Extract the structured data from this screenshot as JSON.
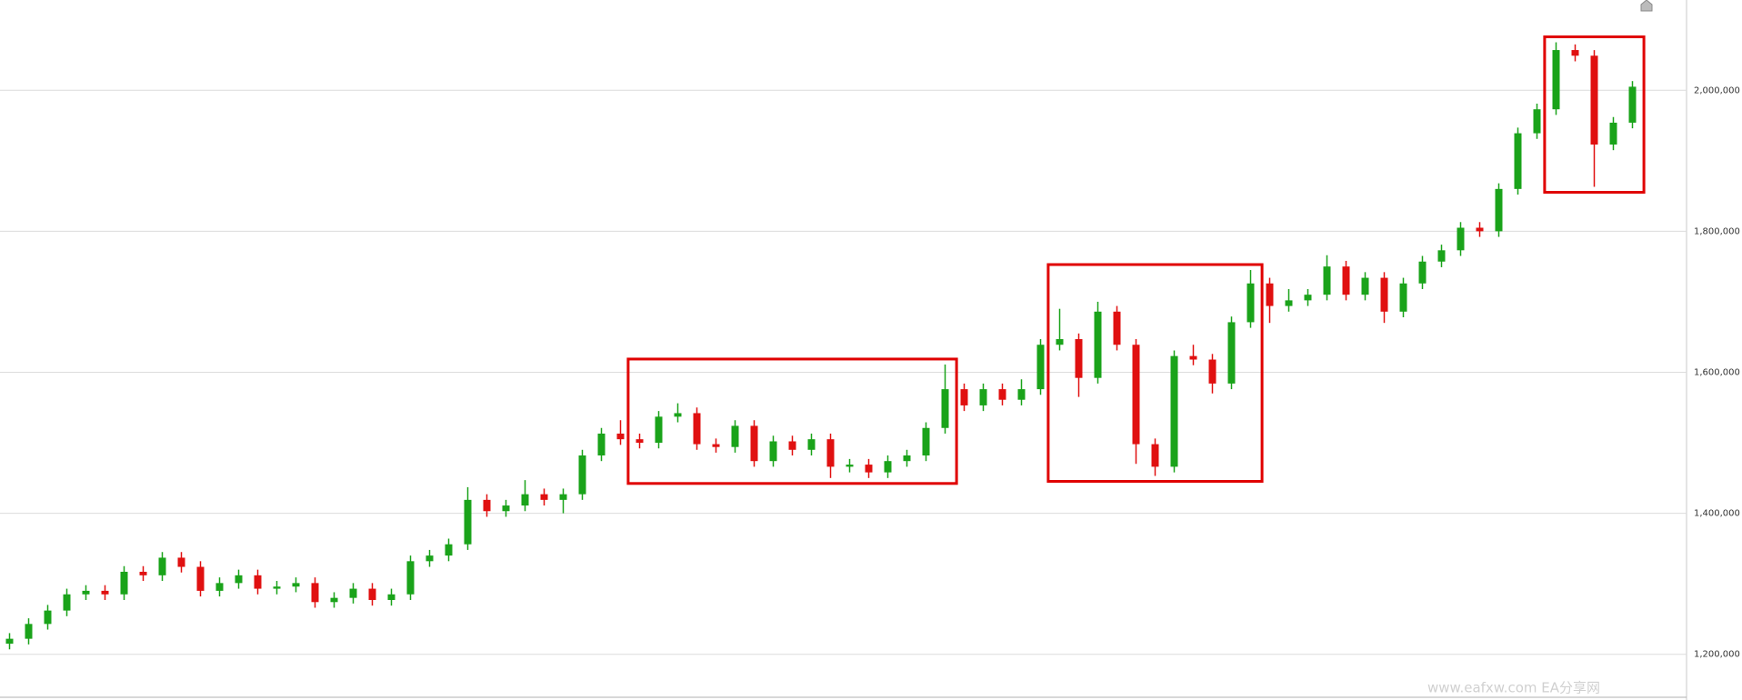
{
  "chart_data": {
    "type": "candlestick",
    "up_color": "#1aa31a",
    "down_color": "#e01010",
    "grid": true,
    "ylim": [
      1139000,
      2128000
    ],
    "yticks": [
      {
        "value": 1200000,
        "label": "1,200,000"
      },
      {
        "value": 1400000,
        "label": "1,400,000"
      },
      {
        "value": 1600000,
        "label": "1,600,000"
      },
      {
        "value": 1800000,
        "label": "1,800,000"
      },
      {
        "value": 2000000,
        "label": "2,000,000"
      }
    ],
    "open": [
      1215000,
      1222000,
      1243000,
      1262000,
      1285000,
      1290000,
      1285000,
      1317000,
      1312000,
      1337000,
      1324000,
      1290000,
      1301000,
      1312000,
      1293000,
      1296000,
      1301000,
      1274000,
      1280000,
      1293000,
      1277000,
      1285000,
      1332000,
      1340000,
      1356000,
      1419000,
      1403000,
      1411000,
      1427000,
      1419000,
      1427000,
      1482000,
      1513000,
      1505000,
      1500000,
      1537000,
      1542000,
      1498000,
      1494000,
      1524000,
      1474000,
      1502000,
      1490000,
      1505000,
      1466000,
      1469000,
      1458000,
      1474000,
      1482000,
      1521000,
      1576000,
      1553000,
      1576000,
      1561000,
      1576000,
      1639000,
      1647000,
      1592000,
      1686000,
      1639000,
      1498000,
      1466000,
      1623000,
      1618000,
      1584000,
      1671000,
      1726000,
      1694000,
      1702000,
      1710000,
      1750000,
      1710000,
      1734000,
      1686000,
      1726000,
      1757000,
      1773000,
      1805000,
      1800000,
      1860000,
      1939000,
      1973000,
      2057000,
      2049000,
      1923000,
      1954000
    ],
    "high": [
      1230000,
      1251000,
      1270000,
      1293000,
      1298000,
      1298000,
      1325000,
      1325000,
      1345000,
      1345000,
      1332000,
      1309000,
      1320000,
      1320000,
      1304000,
      1309000,
      1309000,
      1288000,
      1301000,
      1301000,
      1293000,
      1340000,
      1348000,
      1364000,
      1437000,
      1427000,
      1419000,
      1447000,
      1435000,
      1435000,
      1490000,
      1521000,
      1532000,
      1513000,
      1545000,
      1556000,
      1550000,
      1506000,
      1532000,
      1532000,
      1510000,
      1510000,
      1513000,
      1513000,
      1477000,
      1477000,
      1482000,
      1490000,
      1529000,
      1611000,
      1584000,
      1584000,
      1584000,
      1590000,
      1647000,
      1690000,
      1655000,
      1700000,
      1694000,
      1647000,
      1506000,
      1631000,
      1639000,
      1626000,
      1679000,
      1745000,
      1734000,
      1718000,
      1718000,
      1766000,
      1758000,
      1742000,
      1742000,
      1734000,
      1765000,
      1781000,
      1813000,
      1813000,
      1868000,
      1947000,
      1981000,
      2068000,
      2065000,
      2057000,
      1962000,
      2013000
    ],
    "low": [
      1207000,
      1214000,
      1235000,
      1254000,
      1277000,
      1277000,
      1277000,
      1304000,
      1304000,
      1316000,
      1282000,
      1282000,
      1293000,
      1285000,
      1285000,
      1288000,
      1266000,
      1266000,
      1272000,
      1269000,
      1269000,
      1277000,
      1324000,
      1332000,
      1348000,
      1395000,
      1395000,
      1403000,
      1411000,
      1400000,
      1419000,
      1474000,
      1497000,
      1492000,
      1492000,
      1529000,
      1490000,
      1486000,
      1486000,
      1466000,
      1466000,
      1482000,
      1482000,
      1450000,
      1458000,
      1450000,
      1450000,
      1466000,
      1474000,
      1513000,
      1545000,
      1545000,
      1553000,
      1553000,
      1568000,
      1631000,
      1565000,
      1584000,
      1631000,
      1470000,
      1453000,
      1458000,
      1610000,
      1570000,
      1576000,
      1663000,
      1670000,
      1686000,
      1694000,
      1702000,
      1702000,
      1702000,
      1670000,
      1678000,
      1718000,
      1749000,
      1765000,
      1792000,
      1792000,
      1852000,
      1931000,
      1965000,
      2041000,
      1863000,
      1915000,
      1946000
    ],
    "close": [
      1222000,
      1243000,
      1262000,
      1285000,
      1290000,
      1285000,
      1317000,
      1312000,
      1337000,
      1324000,
      1290000,
      1301000,
      1312000,
      1293000,
      1296000,
      1301000,
      1274000,
      1280000,
      1293000,
      1277000,
      1285000,
      1332000,
      1340000,
      1356000,
      1419000,
      1403000,
      1411000,
      1427000,
      1419000,
      1427000,
      1482000,
      1513000,
      1505000,
      1500000,
      1537000,
      1542000,
      1498000,
      1494000,
      1524000,
      1474000,
      1502000,
      1490000,
      1505000,
      1466000,
      1469000,
      1458000,
      1474000,
      1482000,
      1521000,
      1576000,
      1553000,
      1576000,
      1561000,
      1576000,
      1639000,
      1647000,
      1592000,
      1686000,
      1639000,
      1498000,
      1466000,
      1623000,
      1618000,
      1584000,
      1671000,
      1726000,
      1694000,
      1702000,
      1710000,
      1750000,
      1710000,
      1734000,
      1686000,
      1726000,
      1757000,
      1773000,
      1805000,
      1800000,
      1860000,
      1939000,
      1973000,
      2057000,
      2049000,
      1923000,
      1954000,
      2005000
    ],
    "watermark": "www.eafxw.com   EA分享网"
  }
}
